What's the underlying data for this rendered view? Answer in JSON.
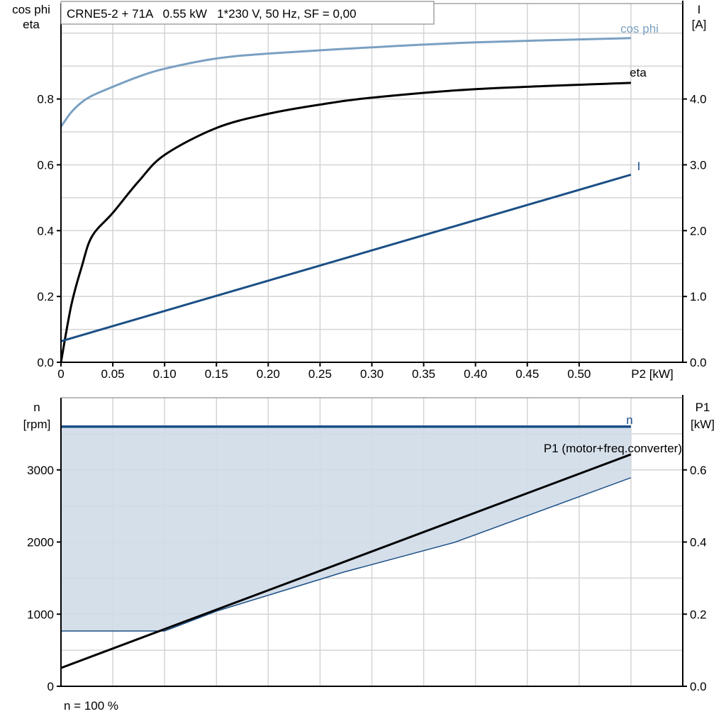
{
  "colors": {
    "cos_phi": "#7aa0c2",
    "eta": "#000000",
    "current": "#1b4f86",
    "speed": "#1b4f86",
    "p1": "#000000",
    "fill": "#d0dce8",
    "grid": "#d4d4d4"
  },
  "chart_data": [
    {
      "type": "line",
      "title": "CRNE5-2 + 71A   0.55 kW   1*230 V, 50 Hz, SF = 0,00",
      "xlabel": "P2 [kW]",
      "ylabel_left": [
        "cos phi",
        "eta"
      ],
      "ylabel_right": [
        "I",
        "[A]"
      ],
      "xlim": [
        0,
        0.6
      ],
      "ylim_left": [
        0,
        1.09
      ],
      "ylim_right": [
        0,
        5.45
      ],
      "x_ticks": [
        "0",
        "0.05",
        "0.10",
        "0.15",
        "0.20",
        "0.25",
        "0.30",
        "0.35",
        "0.40",
        "0.45",
        "0.50"
      ],
      "y_ticks_left": [
        "0.0",
        "0.2",
        "0.4",
        "0.6",
        "0.8"
      ],
      "y_ticks_right": [
        "0.0",
        "1.0",
        "2.0",
        "3.0",
        "4.0"
      ],
      "grid": true,
      "series": [
        {
          "name": "cos phi",
          "axis": "left",
          "x": [
            0,
            0.01,
            0.02,
            0.03,
            0.05,
            0.075,
            0.1,
            0.15,
            0.2,
            0.3,
            0.4,
            0.55
          ],
          "y": [
            0.716,
            0.76,
            0.79,
            0.81,
            0.837,
            0.868,
            0.892,
            0.923,
            0.938,
            0.957,
            0.972,
            0.985
          ]
        },
        {
          "name": "eta",
          "axis": "left",
          "x": [
            0,
            0.01,
            0.02,
            0.03,
            0.05,
            0.075,
            0.1,
            0.15,
            0.2,
            0.25,
            0.3,
            0.4,
            0.55
          ],
          "y": [
            0,
            0.174,
            0.29,
            0.383,
            0.454,
            0.55,
            0.63,
            0.712,
            0.755,
            0.783,
            0.804,
            0.83,
            0.849
          ]
        },
        {
          "name": "I",
          "axis": "right",
          "x": [
            0,
            0.55
          ],
          "y": [
            0.32,
            2.85
          ]
        }
      ]
    },
    {
      "type": "line",
      "xlim": [
        0,
        0.6
      ],
      "ylabel_left": [
        "n",
        "[rpm]"
      ],
      "ylabel_right": [
        "P1",
        "[kW]"
      ],
      "ylim_left": [
        0,
        4000
      ],
      "ylim_right": [
        0,
        0.8
      ],
      "y_ticks_left": [
        "0",
        "1000",
        "2000",
        "3000"
      ],
      "y_ticks_right": [
        "0.0",
        "0.2",
        "0.4",
        "0.6"
      ],
      "grid": true,
      "footnote": "n = 100 %",
      "series": [
        {
          "name": "n",
          "axis": "left",
          "x": [
            0,
            0.55
          ],
          "y": [
            3600,
            3600
          ]
        },
        {
          "name": "P1 (motor+freq.converter)",
          "axis": "right",
          "x": [
            0,
            0.55
          ],
          "y": [
            0.051,
            0.643
          ]
        },
        {
          "axis": "left",
          "role": "lower-speed-limit",
          "x": [
            0,
            0.1,
            0.15,
            0.273,
            0.38,
            0.55
          ],
          "y": [
            767,
            767,
            1042,
            1583,
            1996,
            2891
          ]
        }
      ]
    }
  ]
}
